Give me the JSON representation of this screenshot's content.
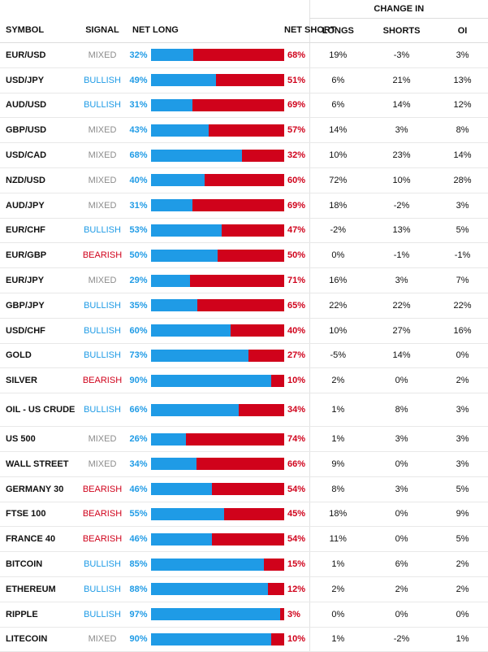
{
  "header": {
    "change_in": "CHANGE IN",
    "symbol": "SYMBOL",
    "signal": "SIGNAL",
    "net_long": "NET LONG",
    "net_short": "NET SHORT",
    "longs": "LONGS",
    "shorts": "SHORTS",
    "oi": "OI"
  },
  "colors": {
    "long": "#1f9be6",
    "short": "#d0021b",
    "mixed": "#8c8c8c"
  },
  "rows": [
    {
      "symbol": "EUR/USD",
      "signal": "MIXED",
      "net_long": 32,
      "net_short": 68,
      "longs": "19%",
      "shorts": "-3%",
      "oi": "3%"
    },
    {
      "symbol": "USD/JPY",
      "signal": "BULLISH",
      "net_long": 49,
      "net_short": 51,
      "longs": "6%",
      "shorts": "21%",
      "oi": "13%"
    },
    {
      "symbol": "AUD/USD",
      "signal": "BULLISH",
      "net_long": 31,
      "net_short": 69,
      "longs": "6%",
      "shorts": "14%",
      "oi": "12%"
    },
    {
      "symbol": "GBP/USD",
      "signal": "MIXED",
      "net_long": 43,
      "net_short": 57,
      "longs": "14%",
      "shorts": "3%",
      "oi": "8%"
    },
    {
      "symbol": "USD/CAD",
      "signal": "MIXED",
      "net_long": 68,
      "net_short": 32,
      "longs": "10%",
      "shorts": "23%",
      "oi": "14%"
    },
    {
      "symbol": "NZD/USD",
      "signal": "MIXED",
      "net_long": 40,
      "net_short": 60,
      "longs": "72%",
      "shorts": "10%",
      "oi": "28%"
    },
    {
      "symbol": "AUD/JPY",
      "signal": "MIXED",
      "net_long": 31,
      "net_short": 69,
      "longs": "18%",
      "shorts": "-2%",
      "oi": "3%"
    },
    {
      "symbol": "EUR/CHF",
      "signal": "BULLISH",
      "net_long": 53,
      "net_short": 47,
      "longs": "-2%",
      "shorts": "13%",
      "oi": "5%"
    },
    {
      "symbol": "EUR/GBP",
      "signal": "BEARISH",
      "net_long": 50,
      "net_short": 50,
      "longs": "0%",
      "shorts": "-1%",
      "oi": "-1%"
    },
    {
      "symbol": "EUR/JPY",
      "signal": "MIXED",
      "net_long": 29,
      "net_short": 71,
      "longs": "16%",
      "shorts": "3%",
      "oi": "7%"
    },
    {
      "symbol": "GBP/JPY",
      "signal": "BULLISH",
      "net_long": 35,
      "net_short": 65,
      "longs": "22%",
      "shorts": "22%",
      "oi": "22%"
    },
    {
      "symbol": "USD/CHF",
      "signal": "BULLISH",
      "net_long": 60,
      "net_short": 40,
      "longs": "10%",
      "shorts": "27%",
      "oi": "16%"
    },
    {
      "symbol": "GOLD",
      "signal": "BULLISH",
      "net_long": 73,
      "net_short": 27,
      "longs": "-5%",
      "shorts": "14%",
      "oi": "0%"
    },
    {
      "symbol": "SILVER",
      "signal": "BEARISH",
      "net_long": 90,
      "net_short": 10,
      "longs": "2%",
      "shorts": "0%",
      "oi": "2%"
    },
    {
      "symbol": "OIL - US CRUDE",
      "signal": "BULLISH",
      "net_long": 66,
      "net_short": 34,
      "longs": "1%",
      "shorts": "8%",
      "oi": "3%",
      "tall": true
    },
    {
      "symbol": "US 500",
      "signal": "MIXED",
      "net_long": 26,
      "net_short": 74,
      "longs": "1%",
      "shorts": "3%",
      "oi": "3%"
    },
    {
      "symbol": "WALL STREET",
      "signal": "MIXED",
      "net_long": 34,
      "net_short": 66,
      "longs": "9%",
      "shorts": "0%",
      "oi": "3%"
    },
    {
      "symbol": "GERMANY 30",
      "signal": "BEARISH",
      "net_long": 46,
      "net_short": 54,
      "longs": "8%",
      "shorts": "3%",
      "oi": "5%"
    },
    {
      "symbol": "FTSE 100",
      "signal": "BEARISH",
      "net_long": 55,
      "net_short": 45,
      "longs": "18%",
      "shorts": "0%",
      "oi": "9%"
    },
    {
      "symbol": "FRANCE 40",
      "signal": "BEARISH",
      "net_long": 46,
      "net_short": 54,
      "longs": "11%",
      "shorts": "0%",
      "oi": "5%"
    },
    {
      "symbol": "BITCOIN",
      "signal": "BULLISH",
      "net_long": 85,
      "net_short": 15,
      "longs": "1%",
      "shorts": "6%",
      "oi": "2%"
    },
    {
      "symbol": "ETHEREUM",
      "signal": "BULLISH",
      "net_long": 88,
      "net_short": 12,
      "longs": "2%",
      "shorts": "2%",
      "oi": "2%"
    },
    {
      "symbol": "RIPPLE",
      "signal": "BULLISH",
      "net_long": 97,
      "net_short": 3,
      "longs": "0%",
      "shorts": "0%",
      "oi": "0%"
    },
    {
      "symbol": "LITECOIN",
      "signal": "MIXED",
      "net_long": 90,
      "net_short": 10,
      "longs": "1%",
      "shorts": "-2%",
      "oi": "1%"
    }
  ]
}
